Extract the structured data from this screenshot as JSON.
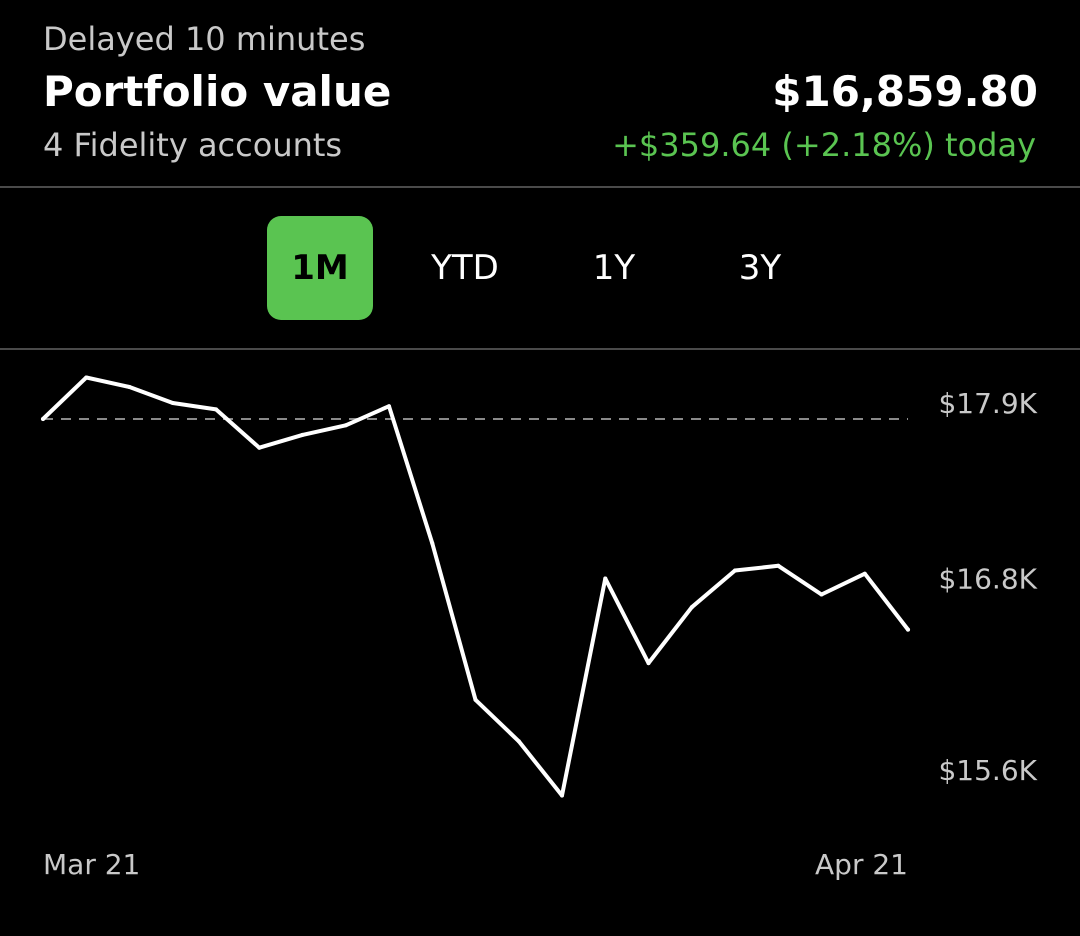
{
  "header": {
    "delayed_label": "Delayed 10 minutes",
    "title": "Portfolio value",
    "subtitle": "4 Fidelity accounts",
    "value": "$16,859.80",
    "change": "+$359.64 (+2.18%) today"
  },
  "tabs": [
    {
      "label": "1M",
      "active": true
    },
    {
      "label": "YTD",
      "active": false
    },
    {
      "label": "1Y",
      "active": false
    },
    {
      "label": "3Y",
      "active": false
    }
  ],
  "colors": {
    "accent_green": "#5ac451",
    "line": "#ffffff",
    "muted_text": "#c9c9c9",
    "baseline_dash": "#8a8a8a"
  },
  "chart_data": {
    "type": "line",
    "x_tick_labels": [
      "Mar 21",
      "Apr 21"
    ],
    "y_tick_labels": [
      "$17.9K",
      "$16.8K",
      "$15.6K"
    ],
    "y_ticks": [
      17900,
      16800,
      15600
    ],
    "ylim": [
      15600,
      17900
    ],
    "grid": false,
    "baseline_value": 17800,
    "series": [
      {
        "values": [
          17800,
          18060,
          18000,
          17900,
          17860,
          17620,
          17700,
          17760,
          17880,
          17020,
          16040,
          15780,
          15440,
          16800,
          16270,
          16620,
          16850,
          16880,
          16700,
          16830,
          16480
        ]
      }
    ]
  }
}
